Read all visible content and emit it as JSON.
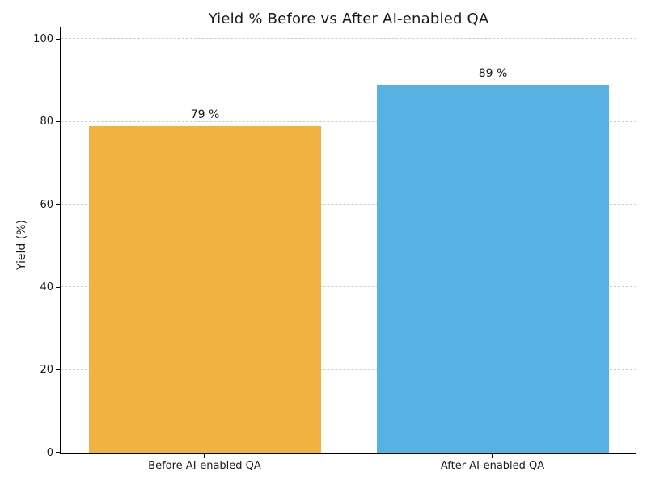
{
  "figure": {
    "background": "#ffffff",
    "text_color": "#1a1a1a",
    "spine_color": "#000000"
  },
  "chart_data": {
    "type": "bar",
    "title": "Yield % Before vs After AI-enabled QA",
    "categories": [
      "Before AI-enabled QA",
      "After AI-enabled QA"
    ],
    "values": [
      79,
      89
    ],
    "value_labels": [
      "79 %",
      "89 %"
    ],
    "bar_colors": [
      "#F2B242",
      "#57B1E2"
    ],
    "xlabel": "",
    "ylabel": "Yield (%)",
    "yticks": [
      0,
      20,
      40,
      60,
      80,
      100
    ],
    "ytick_labels": [
      "0",
      "20",
      "40",
      "60",
      "80",
      "100"
    ],
    "ylim": [
      0,
      103
    ],
    "grid": {
      "axis": "y",
      "style": "dashed",
      "color": "#cccccc"
    },
    "legend_visible": false
  }
}
